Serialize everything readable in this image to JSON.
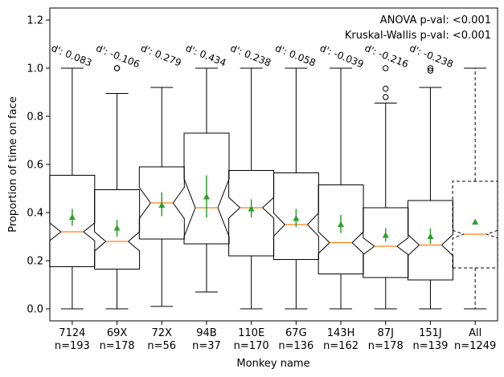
{
  "chart_data": {
    "type": "box",
    "xlabel": "Monkey name",
    "ylabel": "Proportion of time on face",
    "ylim": [
      -0.05,
      1.25
    ],
    "yticks": [
      0.0,
      0.2,
      0.4,
      0.6,
      0.8,
      1.0,
      1.2
    ],
    "ytick_labels": [
      "0.0",
      "0.2",
      "0.4",
      "0.6",
      "0.8",
      "1.0",
      "1.2"
    ],
    "annotations": [
      "ANOVA p-val: <0.001",
      "Kruskal-Wallis p-val: <0.001"
    ],
    "colors": {
      "median": "#ff7f0e",
      "mean": "#2ca02c",
      "box": "#000000"
    },
    "categories": [
      {
        "name": "7124",
        "n_label": "n=193",
        "q1": 0.175,
        "median": 0.32,
        "q3": 0.555,
        "whisker_low": 0.0,
        "whisker_high": 1.0,
        "notch_low": 0.283,
        "notch_high": 0.357,
        "mean": 0.38,
        "mean_ci": [
          0.345,
          0.415
        ],
        "outliers": [],
        "dprime": "d': 0.083",
        "style": "solid"
      },
      {
        "name": "69X",
        "n_label": "n=178",
        "q1": 0.165,
        "median": 0.28,
        "q3": 0.495,
        "whisker_low": 0.0,
        "whisker_high": 0.895,
        "notch_low": 0.24,
        "notch_high": 0.32,
        "mean": 0.335,
        "mean_ci": [
          0.3,
          0.37
        ],
        "outliers": [
          1.0,
          1.0
        ],
        "dprime": "d': -0.106",
        "style": "solid"
      },
      {
        "name": "72X",
        "n_label": "n=56",
        "q1": 0.29,
        "median": 0.44,
        "q3": 0.59,
        "whisker_low": 0.01,
        "whisker_high": 0.92,
        "notch_low": 0.375,
        "notch_high": 0.505,
        "mean": 0.43,
        "mean_ci": [
          0.385,
          0.485
        ],
        "outliers": [],
        "dprime": "d': 0.279",
        "style": "solid"
      },
      {
        "name": "94B",
        "n_label": "n=37",
        "q1": 0.27,
        "median": 0.42,
        "q3": 0.73,
        "whisker_low": 0.07,
        "whisker_high": 1.0,
        "notch_low": 0.3,
        "notch_high": 0.54,
        "mean": 0.465,
        "mean_ci": [
          0.38,
          0.555
        ],
        "outliers": [],
        "dprime": "d': 0.434",
        "style": "solid"
      },
      {
        "name": "110E",
        "n_label": "n=170",
        "q1": 0.22,
        "median": 0.42,
        "q3": 0.575,
        "whisker_low": 0.0,
        "whisker_high": 1.0,
        "notch_low": 0.377,
        "notch_high": 0.463,
        "mean": 0.415,
        "mean_ci": [
          0.38,
          0.455
        ],
        "outliers": [],
        "dprime": "d': 0.238",
        "style": "solid"
      },
      {
        "name": "67G",
        "n_label": "n=136",
        "q1": 0.205,
        "median": 0.35,
        "q3": 0.565,
        "whisker_low": 0.0,
        "whisker_high": 1.0,
        "notch_low": 0.302,
        "notch_high": 0.398,
        "mean": 0.375,
        "mean_ci": [
          0.34,
          0.415
        ],
        "outliers": [],
        "dprime": "d': 0.058",
        "style": "solid"
      },
      {
        "name": "143H",
        "n_label": "n=162",
        "q1": 0.145,
        "median": 0.275,
        "q3": 0.515,
        "whisker_low": 0.0,
        "whisker_high": 1.0,
        "notch_low": 0.23,
        "notch_high": 0.32,
        "mean": 0.35,
        "mean_ci": [
          0.315,
          0.39
        ],
        "outliers": [],
        "dprime": "d': -0.039",
        "style": "solid"
      },
      {
        "name": "87J",
        "n_label": "n=178",
        "q1": 0.13,
        "median": 0.26,
        "q3": 0.42,
        "whisker_low": 0.0,
        "whisker_high": 0.855,
        "notch_low": 0.225,
        "notch_high": 0.295,
        "mean": 0.305,
        "mean_ci": [
          0.28,
          0.335
        ],
        "outliers": [
          0.88,
          0.915,
          1.0
        ],
        "dprime": "d': -0.216",
        "style": "solid"
      },
      {
        "name": "151J",
        "n_label": "n=139",
        "q1": 0.12,
        "median": 0.265,
        "q3": 0.45,
        "whisker_low": 0.0,
        "whisker_high": 0.92,
        "notch_low": 0.221,
        "notch_high": 0.309,
        "mean": 0.3,
        "mean_ci": [
          0.27,
          0.335
        ],
        "outliers": [
          0.99,
          1.0
        ],
        "dprime": "d': -0.238",
        "style": "solid"
      },
      {
        "name": "All",
        "n_label": "n=1249",
        "q1": 0.17,
        "median": 0.31,
        "q3": 0.53,
        "whisker_low": 0.0,
        "whisker_high": 1.0,
        "notch_low": 0.294,
        "notch_high": 0.326,
        "mean": 0.36,
        "mean_ci": [
          0.35,
          0.37
        ],
        "outliers": [],
        "dprime": "",
        "style": "dashed"
      }
    ]
  }
}
